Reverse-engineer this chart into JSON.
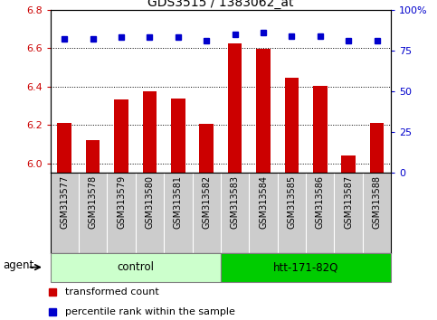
{
  "title": "GDS3515 / 1383062_at",
  "samples": [
    "GSM313577",
    "GSM313578",
    "GSM313579",
    "GSM313580",
    "GSM313581",
    "GSM313582",
    "GSM313583",
    "GSM313584",
    "GSM313585",
    "GSM313586",
    "GSM313587",
    "GSM313588"
  ],
  "red_values": [
    6.21,
    6.12,
    6.33,
    6.375,
    6.335,
    6.205,
    6.625,
    6.595,
    6.445,
    6.405,
    6.04,
    6.21
  ],
  "blue_values": [
    82,
    82,
    83,
    83,
    83,
    81,
    85,
    86,
    84,
    84,
    81,
    81
  ],
  "ylim_left": [
    5.95,
    6.8
  ],
  "ylim_right": [
    0,
    100
  ],
  "yticks_left": [
    6.0,
    6.2,
    6.4,
    6.6,
    6.8
  ],
  "yticks_right": [
    0,
    25,
    50,
    75,
    100
  ],
  "control_label": "control",
  "treatment_label": "htt-171-82Q",
  "agent_label": "agent",
  "legend_red": "transformed count",
  "legend_blue": "percentile rank within the sample",
  "bar_color": "#cc0000",
  "dot_color": "#0000cc",
  "control_bg": "#ccffcc",
  "treatment_bg": "#00cc00",
  "sample_bg": "#cccccc",
  "grid_color": "#000000",
  "tick_label_color_left": "#cc0000",
  "tick_label_color_right": "#0000cc",
  "bar_width": 0.5,
  "n_control": 6,
  "n_treatment": 6
}
